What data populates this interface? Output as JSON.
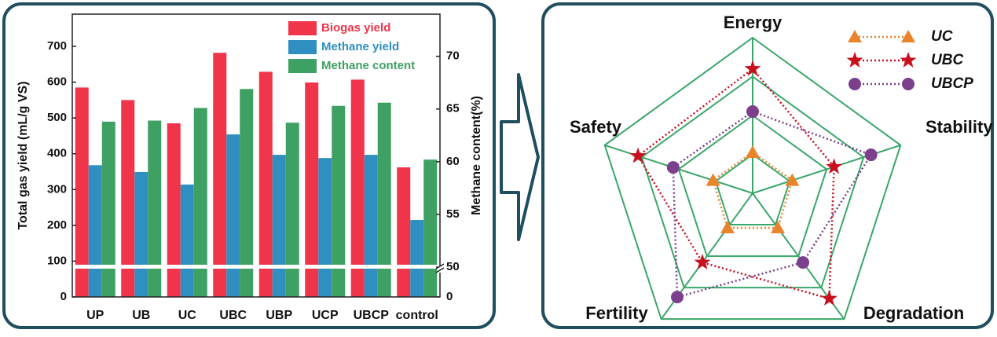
{
  "chart_data": [
    {
      "type": "bar",
      "categories": [
        "UP",
        "UB",
        "UC",
        "UBC",
        "UBP",
        "UCP",
        "UBCP",
        "control"
      ],
      "series": [
        {
          "name": "Biogas yield",
          "color": "#f0344a",
          "values": [
            585,
            550,
            485,
            682,
            629,
            599,
            607,
            362
          ]
        },
        {
          "name": "Methane yield",
          "color": "#2e8fc0",
          "values": [
            368,
            349,
            314,
            454,
            397,
            388,
            397,
            215
          ]
        },
        {
          "name": "Methane content",
          "color": "#3fa063",
          "axis": "y2",
          "values": [
            63.8,
            63.9,
            65.1,
            66.9,
            63.7,
            65.3,
            65.6,
            60.2
          ]
        }
      ],
      "ylabel": "Total gas yield (mL/g VS)",
      "y2label": "Methane content(%)",
      "ylim": [
        0,
        790
      ],
      "yticks": [
        0,
        100,
        200,
        300,
        400,
        500,
        600,
        700
      ],
      "y2lim": [
        0,
        74
      ],
      "y2ticks": [
        0,
        50,
        55,
        60,
        65,
        70
      ],
      "y2break": 50,
      "legend": "upper right"
    },
    {
      "type": "radar",
      "axes": [
        "Energy",
        "Stability",
        "Degradation",
        "Fertility",
        "Safety"
      ],
      "rlim": [
        0,
        4
      ],
      "rticks": [
        1,
        2,
        3,
        4
      ],
      "grid_color": "#3aa66a",
      "series": [
        {
          "name": "UC",
          "color": "#e8842c",
          "marker": "triangle",
          "values": [
            1.05,
            1.07,
            1.1,
            1.1,
            1.07
          ]
        },
        {
          "name": "UBC",
          "color": "#c8101e",
          "marker": "star",
          "values": [
            3.2,
            2.2,
            3.35,
            2.2,
            3.1
          ]
        },
        {
          "name": "UBCP",
          "color": "#7b3f8c",
          "marker": "circle",
          "values": [
            2.1,
            3.2,
            2.2,
            3.3,
            2.15
          ]
        }
      ],
      "legend": "upper right"
    }
  ]
}
